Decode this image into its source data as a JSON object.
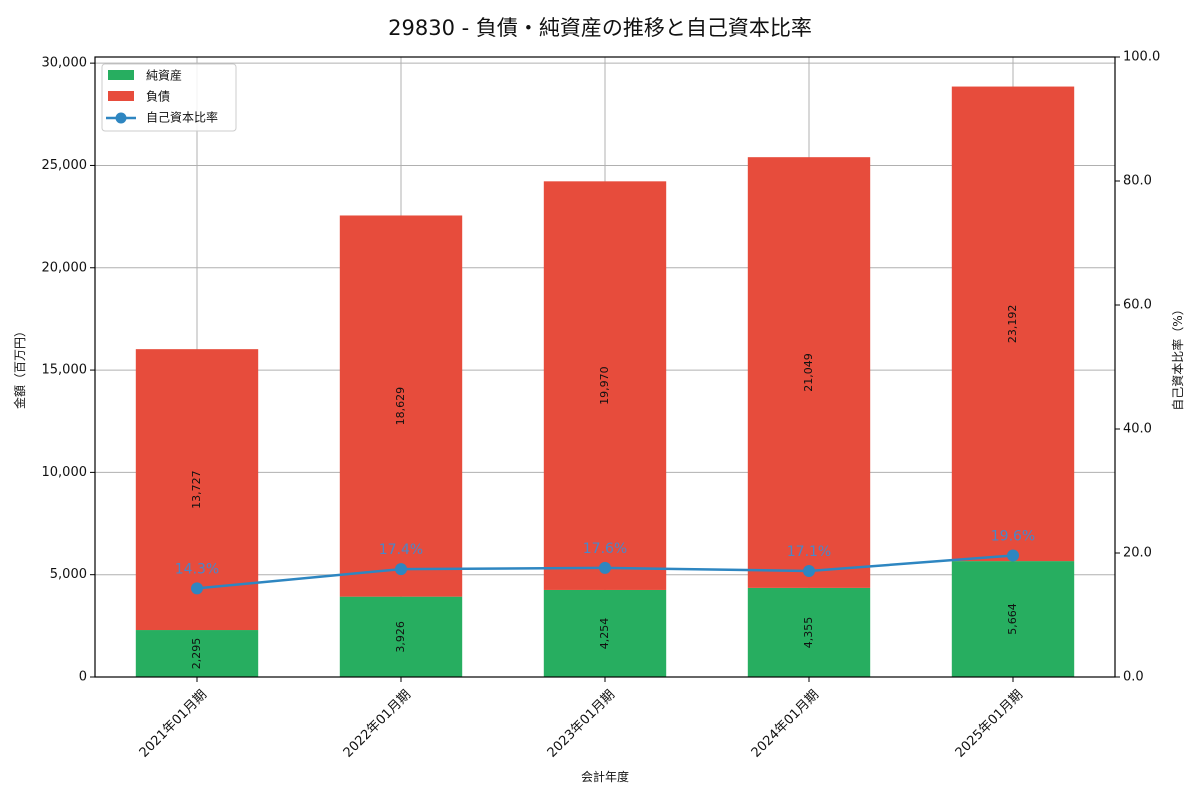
{
  "chart_data": {
    "type": "bar",
    "title": "29830 - 負債・純資産の推移と自己資本比率",
    "xlabel": "会計年度",
    "ylabel": "金額（百万円）",
    "ylabel_right": "自己資本比率（%）",
    "categories": [
      "2021年01月期",
      "2022年01月期",
      "2023年01月期",
      "2024年01月期",
      "2025年01月期"
    ],
    "series": [
      {
        "name": "純資産",
        "type": "bar",
        "stacked": true,
        "color": "#27ae60",
        "values": [
          2295,
          3926,
          4254,
          4355,
          5664
        ],
        "labels": [
          "2,295",
          "3,926",
          "4,254",
          "4,355",
          "5,664"
        ]
      },
      {
        "name": "負債",
        "type": "bar",
        "stacked": true,
        "color": "#e74c3c",
        "values": [
          13727,
          18629,
          19970,
          21049,
          23192
        ],
        "labels": [
          "13,727",
          "18,629",
          "19,970",
          "21,049",
          "23,192"
        ]
      },
      {
        "name": "自己資本比率",
        "type": "line",
        "axis": "right",
        "color": "#2e86c1",
        "values": [
          14.3,
          17.4,
          17.6,
          17.1,
          19.6
        ],
        "labels": [
          "14.3%",
          "17.4%",
          "17.6%",
          "17.1%",
          "19.6%"
        ]
      }
    ],
    "ylim": [
      0,
      30300
    ],
    "ylim_right": [
      0,
      100
    ],
    "yticks": [
      "0",
      "5,000",
      "10,000",
      "15,000",
      "20,000",
      "25,000",
      "30,000"
    ],
    "yticks_right": [
      "0.0",
      "20.0",
      "40.0",
      "60.0",
      "80.0",
      "100.0"
    ],
    "grid": true,
    "legend_position": "upper left"
  }
}
